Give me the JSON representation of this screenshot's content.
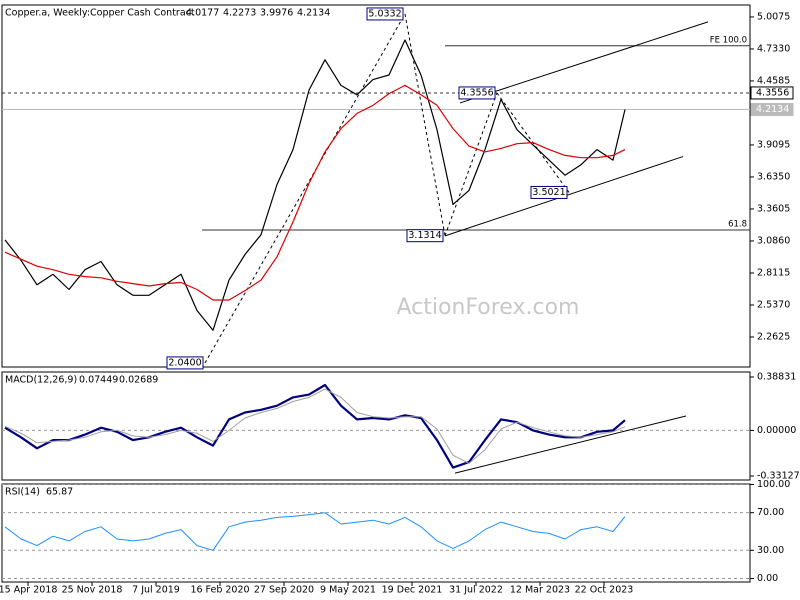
{
  "chart_data": [
    {
      "type": "line",
      "title": "Copper.a, Weekly:",
      "subtitle": "Copper Cash Contract",
      "ohlc": [
        4.0177,
        4.2273,
        3.9976,
        4.2134
      ],
      "watermark": "ActionForex.com",
      "x": [
        0,
        8,
        16,
        24,
        32,
        40,
        48,
        56,
        64,
        72,
        80,
        88,
        96,
        104,
        112,
        120,
        128,
        136,
        144,
        152,
        160,
        168,
        176,
        184,
        192,
        200,
        208,
        216,
        224,
        232,
        240,
        248,
        256,
        264,
        272,
        280,
        288,
        296,
        304,
        310
      ],
      "xlim": [
        -1.5,
        372.5
      ],
      "series": [
        {
          "color": "#000000",
          "values": [
            3.095,
            2.92,
            2.71,
            2.8,
            2.67,
            2.84,
            2.91,
            2.71,
            2.62,
            2.62,
            2.71,
            2.8,
            2.49,
            2.32,
            2.75,
            2.97,
            3.14,
            3.57,
            3.87,
            4.38,
            4.64,
            4.42,
            4.34,
            4.47,
            4.51,
            4.81,
            4.51,
            4.04,
            3.4,
            3.52,
            3.87,
            4.3,
            4.04,
            3.91,
            3.78,
            3.65,
            3.74,
            3.87,
            3.78,
            4.2134
          ]
        },
        {
          "color": "#e00000",
          "values": [
            2.99,
            2.93,
            2.87,
            2.84,
            2.8,
            2.78,
            2.77,
            2.74,
            2.72,
            2.7,
            2.72,
            2.73,
            2.67,
            2.58,
            2.58,
            2.66,
            2.75,
            2.95,
            3.25,
            3.58,
            3.85,
            4.05,
            4.18,
            4.25,
            4.35,
            4.42,
            4.34,
            4.25,
            4.05,
            3.9,
            3.85,
            3.88,
            3.92,
            3.93,
            3.87,
            3.82,
            3.8,
            3.8,
            3.82,
            3.87
          ]
        }
      ],
      "ylim": [
        2.005,
        5.11
      ],
      "yticks": [
        5.0075,
        {
          "value": 4.733,
          "label": "4.7330"
        },
        4.4585,
        3.9095,
        {
          "value": 3.635,
          "label": "3.6350"
        },
        3.3605,
        {
          "value": 3.086,
          "label": "3.0860"
        },
        2.8115,
        {
          "value": 2.537,
          "label": "2.5370"
        },
        2.2625
      ],
      "price_markers": [
        {
          "value": 4.3556,
          "style": "dashed"
        },
        {
          "value": 4.2134,
          "style": "current"
        }
      ],
      "levels": [
        {
          "label": "FE 100.0",
          "value": 4.76,
          "from": 220
        },
        {
          "label": "61.8",
          "value": 3.18,
          "from": 98.5
        }
      ],
      "trendlines": [
        {
          "x": [
            220,
            339
          ],
          "y": [
            3.13,
            3.81
          ],
          "style": "solid"
        },
        {
          "x": [
            227.5,
            351.5
          ],
          "y": [
            4.27,
            4.965
          ],
          "style": "solid"
        },
        {
          "x": [
            100,
            200
          ],
          "y": [
            2.04,
            5.0332
          ],
          "style": "dashed"
        },
        {
          "x": [
            200,
            220
          ],
          "y": [
            5.0332,
            3.1314
          ],
          "style": "dashed"
        },
        {
          "x": [
            220,
            246
          ],
          "y": [
            3.1314,
            4.3556
          ],
          "style": "dashed"
        },
        {
          "x": [
            246,
            282
          ],
          "y": [
            4.3556,
            3.5021
          ],
          "style": "dashed"
        }
      ],
      "pivots": [
        {
          "x": 200,
          "value": 5.0332
        },
        {
          "x": 246,
          "value": 4.3556
        },
        {
          "x": 220,
          "value": 3.1314
        },
        {
          "x": 282,
          "value": 3.5021
        },
        {
          "x": 100,
          "value": 2.04,
          "label": "2.0400"
        }
      ]
    },
    {
      "type": "line",
      "title": "MACD(12,26,9)",
      "current": [
        0.07449,
        0.02689
      ],
      "x": [
        0,
        8,
        16,
        24,
        32,
        40,
        48,
        56,
        64,
        72,
        80,
        88,
        96,
        104,
        112,
        120,
        128,
        136,
        144,
        152,
        160,
        168,
        176,
        184,
        192,
        200,
        208,
        216,
        224,
        232,
        240,
        248,
        256,
        264,
        272,
        280,
        288,
        296,
        304,
        310
      ],
      "xlim": [
        -1.5,
        372.5
      ],
      "series": [
        {
          "color": "#000080",
          "width": 2.2,
          "values": [
            0.02,
            -0.05,
            -0.13,
            -0.07,
            -0.07,
            -0.03,
            0.02,
            -0.01,
            -0.07,
            -0.05,
            -0.01,
            0.02,
            -0.05,
            -0.11,
            0.08,
            0.13,
            0.15,
            0.18,
            0.24,
            0.26,
            0.33,
            0.18,
            0.08,
            0.09,
            0.08,
            0.11,
            0.09,
            -0.07,
            -0.27,
            -0.23,
            -0.07,
            0.08,
            0.06,
            0.0,
            -0.03,
            -0.05,
            -0.05,
            -0.01,
            0.0,
            0.07449
          ]
        },
        {
          "color": "#a0a0a0",
          "width": 1,
          "values": [
            0.03,
            -0.02,
            -0.09,
            -0.08,
            -0.07,
            -0.05,
            -0.01,
            0.0,
            -0.04,
            -0.05,
            -0.03,
            0.0,
            -0.02,
            -0.08,
            0.0,
            0.09,
            0.13,
            0.16,
            0.21,
            0.24,
            0.3,
            0.24,
            0.13,
            0.1,
            0.09,
            0.1,
            0.1,
            0.01,
            -0.18,
            -0.24,
            -0.14,
            0.01,
            0.06,
            0.02,
            -0.01,
            -0.04,
            -0.05,
            -0.03,
            -0.01,
            0.02689
          ]
        }
      ],
      "ylim": [
        -0.3603,
        0.4246
      ],
      "yticks": [
        0.38831,
        {
          "value": 0,
          "label": "0.00000"
        },
        -0.33127
      ],
      "zero_line": true,
      "trendlines": [
        {
          "x": [
            225,
            340.5
          ],
          "y": [
            -0.31,
            0.105
          ],
          "style": "solid"
        }
      ]
    },
    {
      "type": "line",
      "title": "RSI(14)",
      "current": [
        65.87
      ],
      "x": [
        0,
        8,
        16,
        24,
        32,
        40,
        48,
        56,
        64,
        72,
        80,
        88,
        96,
        104,
        112,
        120,
        128,
        136,
        144,
        152,
        160,
        168,
        176,
        184,
        192,
        200,
        208,
        216,
        224,
        232,
        240,
        248,
        256,
        264,
        272,
        280,
        288,
        296,
        304,
        310
      ],
      "xlim": [
        -1.5,
        372.5
      ],
      "series": [
        {
          "color": "#1e90ff",
          "width": 1,
          "values": [
            55,
            42,
            35,
            45,
            40,
            50,
            55,
            42,
            40,
            42,
            48,
            52,
            35,
            30,
            55,
            60,
            62,
            65,
            66,
            68,
            70,
            58,
            60,
            62,
            58,
            65,
            55,
            40,
            32,
            40,
            52,
            60,
            55,
            50,
            48,
            42,
            52,
            55,
            50,
            65.87
          ]
        }
      ],
      "ylim": [
        -3.7,
        100.5
      ],
      "yticks": [
        {
          "value": 100,
          "label": "100.00"
        },
        {
          "value": 70,
          "label": "70.00"
        },
        {
          "value": 30,
          "label": "30.00"
        },
        {
          "value": 0,
          "label": "0.00"
        }
      ],
      "dashed_ticks": true,
      "xticks": [
        {
          "value": 11.5,
          "label": "15 Apr 2018"
        },
        {
          "value": 43.5,
          "label": "25 Nov 2018"
        },
        {
          "value": 75.5,
          "label": "7 Jul 2019"
        },
        {
          "value": 107.5,
          "label": "16 Feb 2020"
        },
        {
          "value": 139.5,
          "label": "27 Sep 2020"
        },
        {
          "value": 171.5,
          "label": "9 May 2021"
        },
        {
          "value": 203.5,
          "label": "19 Dec 2021"
        },
        {
          "value": 235.5,
          "label": "31 Jul 2022"
        },
        {
          "value": 267.5,
          "label": "12 Mar 2023"
        },
        {
          "value": 299.5,
          "label": "22 Oct 2023"
        }
      ]
    }
  ]
}
